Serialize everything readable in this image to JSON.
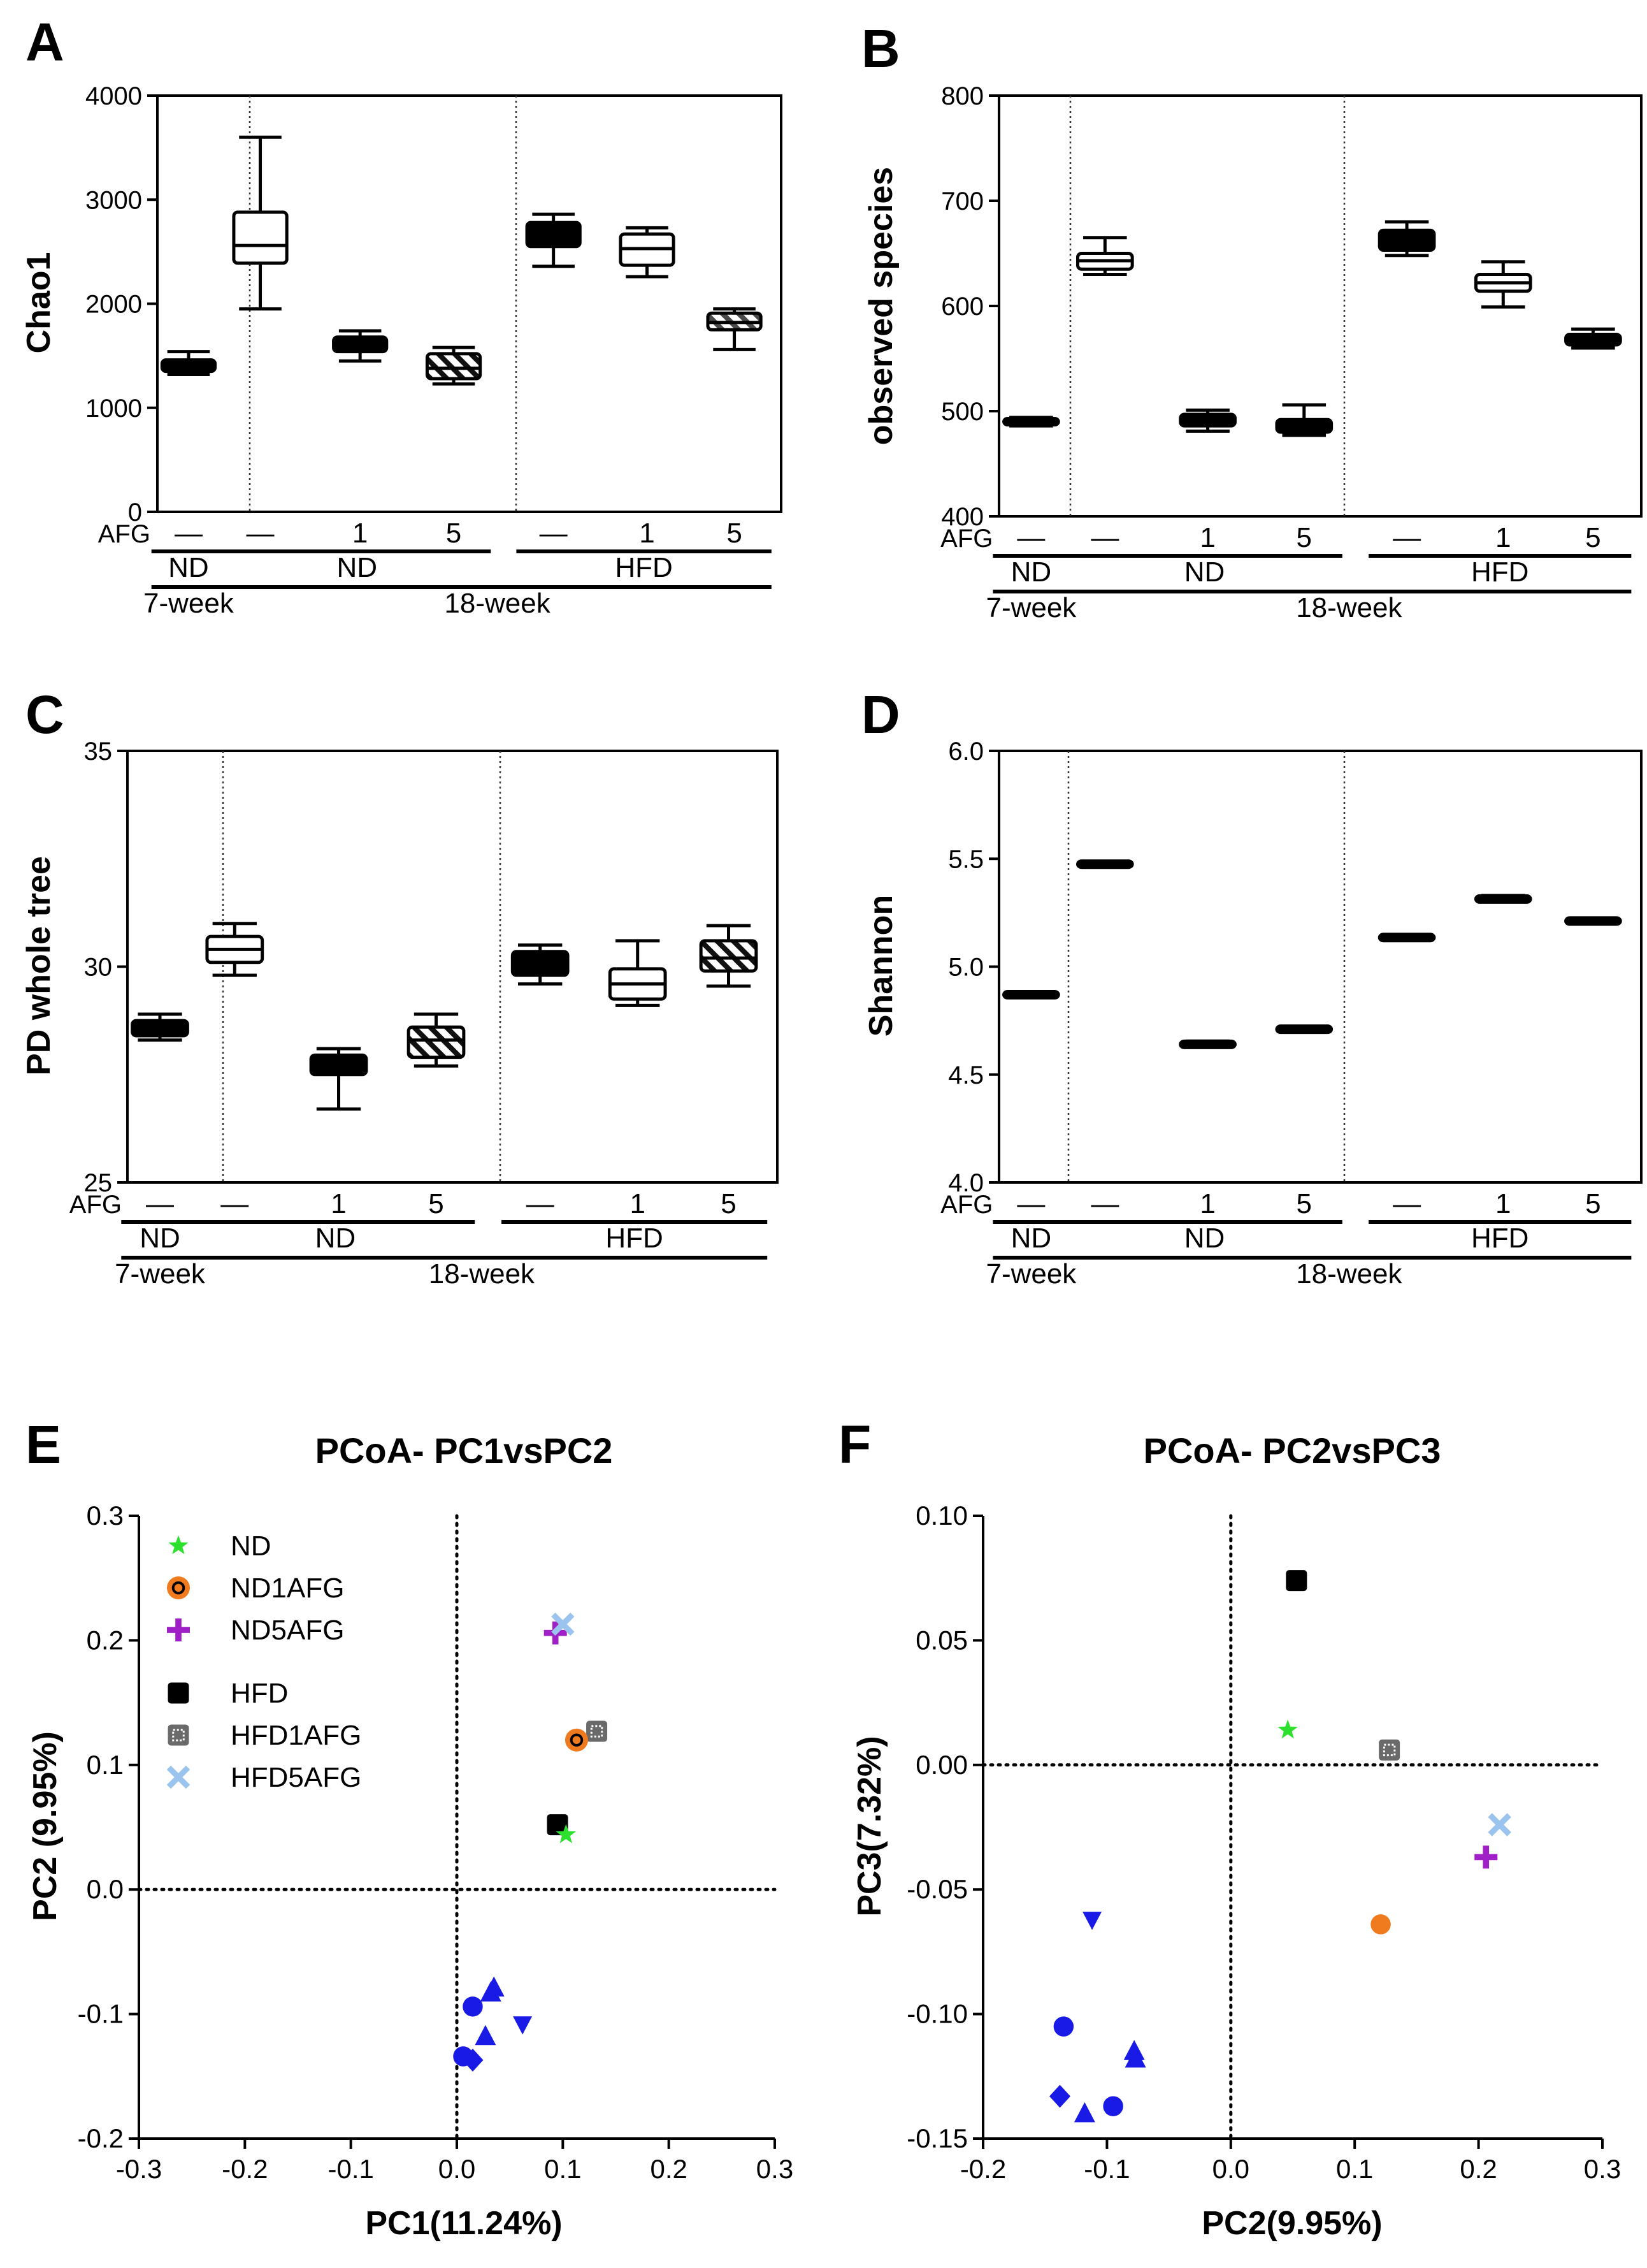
{
  "panels": {
    "A": {
      "letter": "A",
      "ylabel": "Chao1",
      "yticks": [
        "0",
        "1000",
        "2000",
        "3000",
        "4000"
      ]
    },
    "B": {
      "letter": "B",
      "ylabel": "observed species",
      "yticks": [
        "400",
        "500",
        "600",
        "700",
        "800"
      ]
    },
    "C": {
      "letter": "C",
      "ylabel": "PD whole tree",
      "yticks": [
        "25",
        "30",
        "35"
      ]
    },
    "D": {
      "letter": "D",
      "ylabel": "Shannon",
      "yticks": [
        "4.0",
        "4.5",
        "5.0",
        "5.5",
        "6.0"
      ]
    },
    "E": {
      "letter": "E",
      "title": "PCoA- PC1vsPC2",
      "xlabel": "PC1(11.24%)",
      "ylabel": "PC2 (9.95%)",
      "xticks": [
        "-0.3",
        "-0.2",
        "-0.1",
        "0.0",
        "0.1",
        "0.2",
        "0.3"
      ],
      "yticks": [
        "-0.2",
        "-0.1",
        "0.0",
        "0.1",
        "0.2",
        "0.3"
      ]
    },
    "F": {
      "letter": "F",
      "title": "PCoA- PC2vsPC3",
      "xlabel": "PC2(9.95%)",
      "ylabel": "PC3(7.32%)",
      "xticks": [
        "-0.2",
        "-0.1",
        "0.0",
        "0.1",
        "0.2",
        "0.3"
      ],
      "yticks": [
        "-0.15",
        "-0.10",
        "-0.05",
        "0.00",
        "0.05",
        "0.10"
      ]
    }
  },
  "box_xaxis": {
    "afg_label": "AFG",
    "afg_levels": [
      "—",
      "—",
      "1",
      "5",
      "—",
      "1",
      "5"
    ],
    "groups": [
      {
        "label": "ND",
        "span": [
          0,
          0
        ]
      },
      {
        "label": "ND",
        "span": [
          1,
          3
        ]
      },
      {
        "label": "HFD",
        "span": [
          4,
          6
        ]
      }
    ],
    "ages": [
      {
        "label": "7-week",
        "span": [
          0,
          0
        ]
      },
      {
        "label": "18-week",
        "span": [
          1,
          6
        ]
      }
    ]
  },
  "colors": {
    "ND": "#2ee02e",
    "ND1AFG": "#f07a1e",
    "ND5AFG": "#a020c8",
    "HFD": "#000000",
    "HFD1AFG": "#6a6a6a",
    "HFD5AFG": "#9ac4ee",
    "other": "#1a1ae6"
  },
  "chart_data": [
    {
      "panel": "A",
      "type": "box",
      "ylim": [
        0,
        4000
      ],
      "categories": [
        "7-week ND",
        "18-week ND —",
        "18-week ND 1",
        "18-week ND 5",
        "18-week HFD —",
        "18-week HFD 1",
        "18-week HFD 5"
      ],
      "boxes": [
        {
          "min": 1320,
          "q1": 1350,
          "median": 1400,
          "q3": 1460,
          "max": 1540,
          "fill": "black"
        },
        {
          "min": 1950,
          "q1": 2390,
          "median": 2560,
          "q3": 2880,
          "max": 3600,
          "fill": "white"
        },
        {
          "min": 1450,
          "q1": 1540,
          "median": 1600,
          "q3": 1680,
          "max": 1740,
          "fill": "black"
        },
        {
          "min": 1230,
          "q1": 1280,
          "median": 1380,
          "q3": 1520,
          "max": 1580,
          "fill": "hatched-black"
        },
        {
          "min": 2360,
          "q1": 2550,
          "median": 2650,
          "q3": 2780,
          "max": 2860,
          "fill": "black"
        },
        {
          "min": 2260,
          "q1": 2370,
          "median": 2530,
          "q3": 2670,
          "max": 2730,
          "fill": "white"
        },
        {
          "min": 1560,
          "q1": 1750,
          "median": 1820,
          "q3": 1910,
          "max": 1950,
          "fill": "hatched-gray"
        }
      ]
    },
    {
      "panel": "B",
      "type": "box",
      "ylim": [
        400,
        800
      ],
      "categories": [
        "7-week ND",
        "18-week ND —",
        "18-week ND 1",
        "18-week ND 5",
        "18-week HFD —",
        "18-week HFD 1",
        "18-week HFD 5"
      ],
      "boxes": [
        {
          "min": 486,
          "q1": 488,
          "median": 490,
          "q3": 492,
          "max": 494,
          "fill": "black"
        },
        {
          "min": 630,
          "q1": 635,
          "median": 643,
          "q3": 650,
          "max": 665,
          "fill": "white"
        },
        {
          "min": 481,
          "q1": 486,
          "median": 492,
          "q3": 497,
          "max": 501,
          "fill": "black"
        },
        {
          "min": 477,
          "q1": 480,
          "median": 486,
          "q3": 492,
          "max": 506,
          "fill": "black"
        },
        {
          "min": 648,
          "q1": 653,
          "median": 662,
          "q3": 672,
          "max": 680,
          "fill": "black"
        },
        {
          "min": 599,
          "q1": 614,
          "median": 622,
          "q3": 630,
          "max": 642,
          "fill": "white"
        },
        {
          "min": 560,
          "q1": 563,
          "median": 568,
          "q3": 573,
          "max": 578,
          "fill": "black"
        }
      ]
    },
    {
      "panel": "C",
      "type": "box",
      "ylim": [
        25,
        35
      ],
      "categories": [
        "7-week ND",
        "18-week ND —",
        "18-week ND 1",
        "18-week ND 5",
        "18-week HFD —",
        "18-week HFD 1",
        "18-week HFD 5"
      ],
      "boxes": [
        {
          "min": 28.3,
          "q1": 28.4,
          "median": 28.6,
          "q3": 28.75,
          "max": 28.9,
          "fill": "black"
        },
        {
          "min": 29.8,
          "q1": 30.1,
          "median": 30.4,
          "q3": 30.7,
          "max": 31.0,
          "fill": "white"
        },
        {
          "min": 26.7,
          "q1": 27.5,
          "median": 27.7,
          "q3": 27.95,
          "max": 28.1,
          "fill": "black"
        },
        {
          "min": 27.7,
          "q1": 27.9,
          "median": 28.3,
          "q3": 28.6,
          "max": 28.9,
          "fill": "hatched-black"
        },
        {
          "min": 29.6,
          "q1": 29.8,
          "median": 30.05,
          "q3": 30.35,
          "max": 30.5,
          "fill": "black"
        },
        {
          "min": 29.1,
          "q1": 29.25,
          "median": 29.6,
          "q3": 29.95,
          "max": 30.6,
          "fill": "white"
        },
        {
          "min": 29.55,
          "q1": 29.9,
          "median": 30.2,
          "q3": 30.6,
          "max": 30.95,
          "fill": "hatched-black"
        }
      ]
    },
    {
      "panel": "D",
      "type": "box",
      "ylim": [
        4.0,
        6.0
      ],
      "categories": [
        "7-week ND",
        "18-week ND —",
        "18-week ND 1",
        "18-week ND 5",
        "18-week HFD —",
        "18-week HFD 1",
        "18-week HFD 5"
      ],
      "boxes": [
        {
          "min": 4.86,
          "q1": 4.865,
          "median": 4.87,
          "q3": 4.875,
          "max": 4.88,
          "fill": "black"
        },
        {
          "min": 5.465,
          "q1": 5.47,
          "median": 5.475,
          "q3": 5.48,
          "max": 5.485,
          "fill": "black"
        },
        {
          "min": 4.63,
          "q1": 4.635,
          "median": 4.64,
          "q3": 4.645,
          "max": 4.655,
          "fill": "black"
        },
        {
          "min": 4.7,
          "q1": 4.705,
          "median": 4.71,
          "q3": 4.715,
          "max": 4.72,
          "fill": "black"
        },
        {
          "min": 5.125,
          "q1": 5.13,
          "median": 5.135,
          "q3": 5.14,
          "max": 5.145,
          "fill": "black"
        },
        {
          "min": 5.3,
          "q1": 5.305,
          "median": 5.315,
          "q3": 5.322,
          "max": 5.33,
          "fill": "black"
        },
        {
          "min": 5.2,
          "q1": 5.205,
          "median": 5.212,
          "q3": 5.218,
          "max": 5.225,
          "fill": "black"
        }
      ]
    },
    {
      "panel": "E",
      "type": "scatter",
      "title": "PCoA- PC1vsPC2",
      "xlabel": "PC1(11.24%)",
      "ylabel": "PC2 (9.95%)",
      "xlim": [
        -0.3,
        0.3
      ],
      "ylim": [
        -0.2,
        0.3
      ],
      "reference_lines": {
        "x": 0,
        "y": 0
      },
      "legend_position": "top-left",
      "legend": [
        {
          "name": "ND",
          "marker": "star",
          "color": "#2ee02e"
        },
        {
          "name": "ND1AFG",
          "marker": "ring-circle",
          "color": "#f07a1e"
        },
        {
          "name": "ND5AFG",
          "marker": "plus",
          "color": "#a020c8"
        },
        {
          "name": "HFD",
          "marker": "square",
          "color": "#000000"
        },
        {
          "name": "HFD1AFG",
          "marker": "dotted-square",
          "color": "#6a6a6a"
        },
        {
          "name": "HFD5AFG",
          "marker": "cross",
          "color": "#9ac4ee"
        }
      ],
      "points": [
        {
          "series": "ND5AFG",
          "marker": "plus",
          "color": "#a020c8",
          "x": 0.093,
          "y": 0.206
        },
        {
          "series": "HFD5AFG",
          "marker": "cross",
          "color": "#9ac4ee",
          "x": 0.1,
          "y": 0.213
        },
        {
          "series": "HFD1AFG",
          "marker": "dotted-square",
          "color": "#6a6a6a",
          "x": 0.132,
          "y": 0.127
        },
        {
          "series": "ND1AFG",
          "marker": "ring-circle",
          "color": "#f07a1e",
          "x": 0.113,
          "y": 0.12
        },
        {
          "series": "HFD",
          "marker": "square",
          "color": "#000000",
          "x": 0.095,
          "y": 0.052
        },
        {
          "series": "ND",
          "marker": "star",
          "color": "#2ee02e",
          "x": 0.103,
          "y": 0.044
        },
        {
          "marker": "triangle-up",
          "color": "#1a1ae6",
          "x": 0.035,
          "y": -0.079
        },
        {
          "marker": "triangle-up",
          "color": "#1a1ae6",
          "x": 0.032,
          "y": -0.083
        },
        {
          "marker": "circle",
          "color": "#1a1ae6",
          "x": 0.015,
          "y": -0.094
        },
        {
          "marker": "triangle-down",
          "color": "#1a1ae6",
          "x": 0.062,
          "y": -0.108
        },
        {
          "marker": "triangle-up",
          "color": "#1a1ae6",
          "x": 0.027,
          "y": -0.118
        },
        {
          "marker": "circle",
          "color": "#1a1ae6",
          "x": 0.006,
          "y": -0.134
        },
        {
          "marker": "diamond",
          "color": "#1a1ae6",
          "x": 0.015,
          "y": -0.137
        }
      ]
    },
    {
      "panel": "F",
      "type": "scatter",
      "title": "PCoA- PC2vsPC3",
      "xlabel": "PC2(9.95%)",
      "ylabel": "PC3(7.32%)",
      "xlim": [
        -0.2,
        0.3
      ],
      "ylim": [
        -0.15,
        0.1
      ],
      "reference_lines": {
        "x": 0,
        "y": 0
      },
      "points": [
        {
          "series": "HFD",
          "marker": "square",
          "color": "#000000",
          "x": 0.053,
          "y": 0.074
        },
        {
          "series": "ND",
          "marker": "star",
          "color": "#2ee02e",
          "x": 0.046,
          "y": 0.014
        },
        {
          "series": "HFD1AFG",
          "marker": "dotted-square",
          "color": "#6a6a6a",
          "x": 0.128,
          "y": 0.006
        },
        {
          "series": "HFD5AFG",
          "marker": "cross",
          "color": "#9ac4ee",
          "x": 0.217,
          "y": -0.024
        },
        {
          "series": "ND5AFG",
          "marker": "plus",
          "color": "#a020c8",
          "x": 0.206,
          "y": -0.037
        },
        {
          "series": "ND1AFG",
          "marker": "circle",
          "color": "#f07a1e",
          "x": 0.121,
          "y": -0.064
        },
        {
          "marker": "triangle-down",
          "color": "#1a1ae6",
          "x": -0.112,
          "y": -0.062
        },
        {
          "marker": "circle",
          "color": "#1a1ae6",
          "x": -0.135,
          "y": -0.105
        },
        {
          "marker": "triangle-up",
          "color": "#1a1ae6",
          "x": -0.078,
          "y": -0.115
        },
        {
          "marker": "triangle-up",
          "color": "#1a1ae6",
          "x": -0.077,
          "y": -0.118
        },
        {
          "marker": "diamond",
          "color": "#1a1ae6",
          "x": -0.138,
          "y": -0.133
        },
        {
          "marker": "circle",
          "color": "#1a1ae6",
          "x": -0.095,
          "y": -0.137
        },
        {
          "marker": "triangle-up",
          "color": "#1a1ae6",
          "x": -0.118,
          "y": -0.14
        }
      ]
    }
  ]
}
